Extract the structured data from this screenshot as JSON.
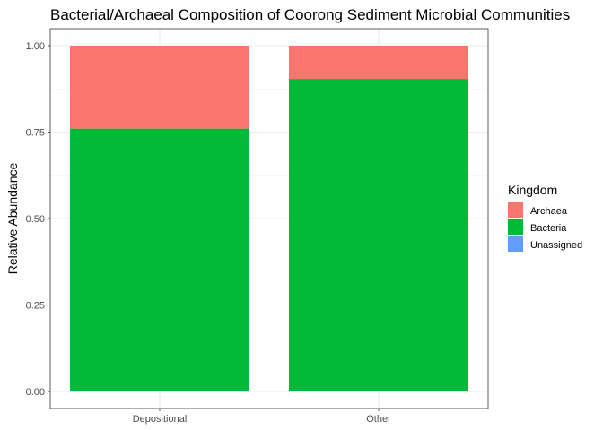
{
  "chart_data": {
    "type": "bar",
    "stacked": true,
    "title": "Bacterial/Archaeal Composition of Coorong Sediment Microbial Communities",
    "xlabel": "",
    "ylabel": "Relative Abundance",
    "categories": [
      "Depositional",
      "Other"
    ],
    "series": [
      {
        "name": "Bacteria",
        "color": "#00BA38",
        "values": [
          0.76,
          0.904
        ]
      },
      {
        "name": "Archaea",
        "color": "#F8766D",
        "values": [
          0.24,
          0.096
        ]
      },
      {
        "name": "Unassigned",
        "color": "#619CFF",
        "values": [
          0.0,
          0.0
        ]
      }
    ],
    "ylim": [
      0,
      1
    ],
    "yticks": [
      0,
      0.25,
      0.5,
      0.75,
      1
    ],
    "ytick_labels": [
      "0.00",
      "0.25",
      "0.50",
      "0.75",
      "1.00"
    ],
    "grid": true,
    "legend": {
      "title": "Kingdom",
      "position": "right",
      "entries": [
        {
          "label": "Archaea",
          "color": "#F8766D"
        },
        {
          "label": "Bacteria",
          "color": "#00BA38"
        },
        {
          "label": "Unassigned",
          "color": "#619CFF"
        }
      ]
    }
  }
}
